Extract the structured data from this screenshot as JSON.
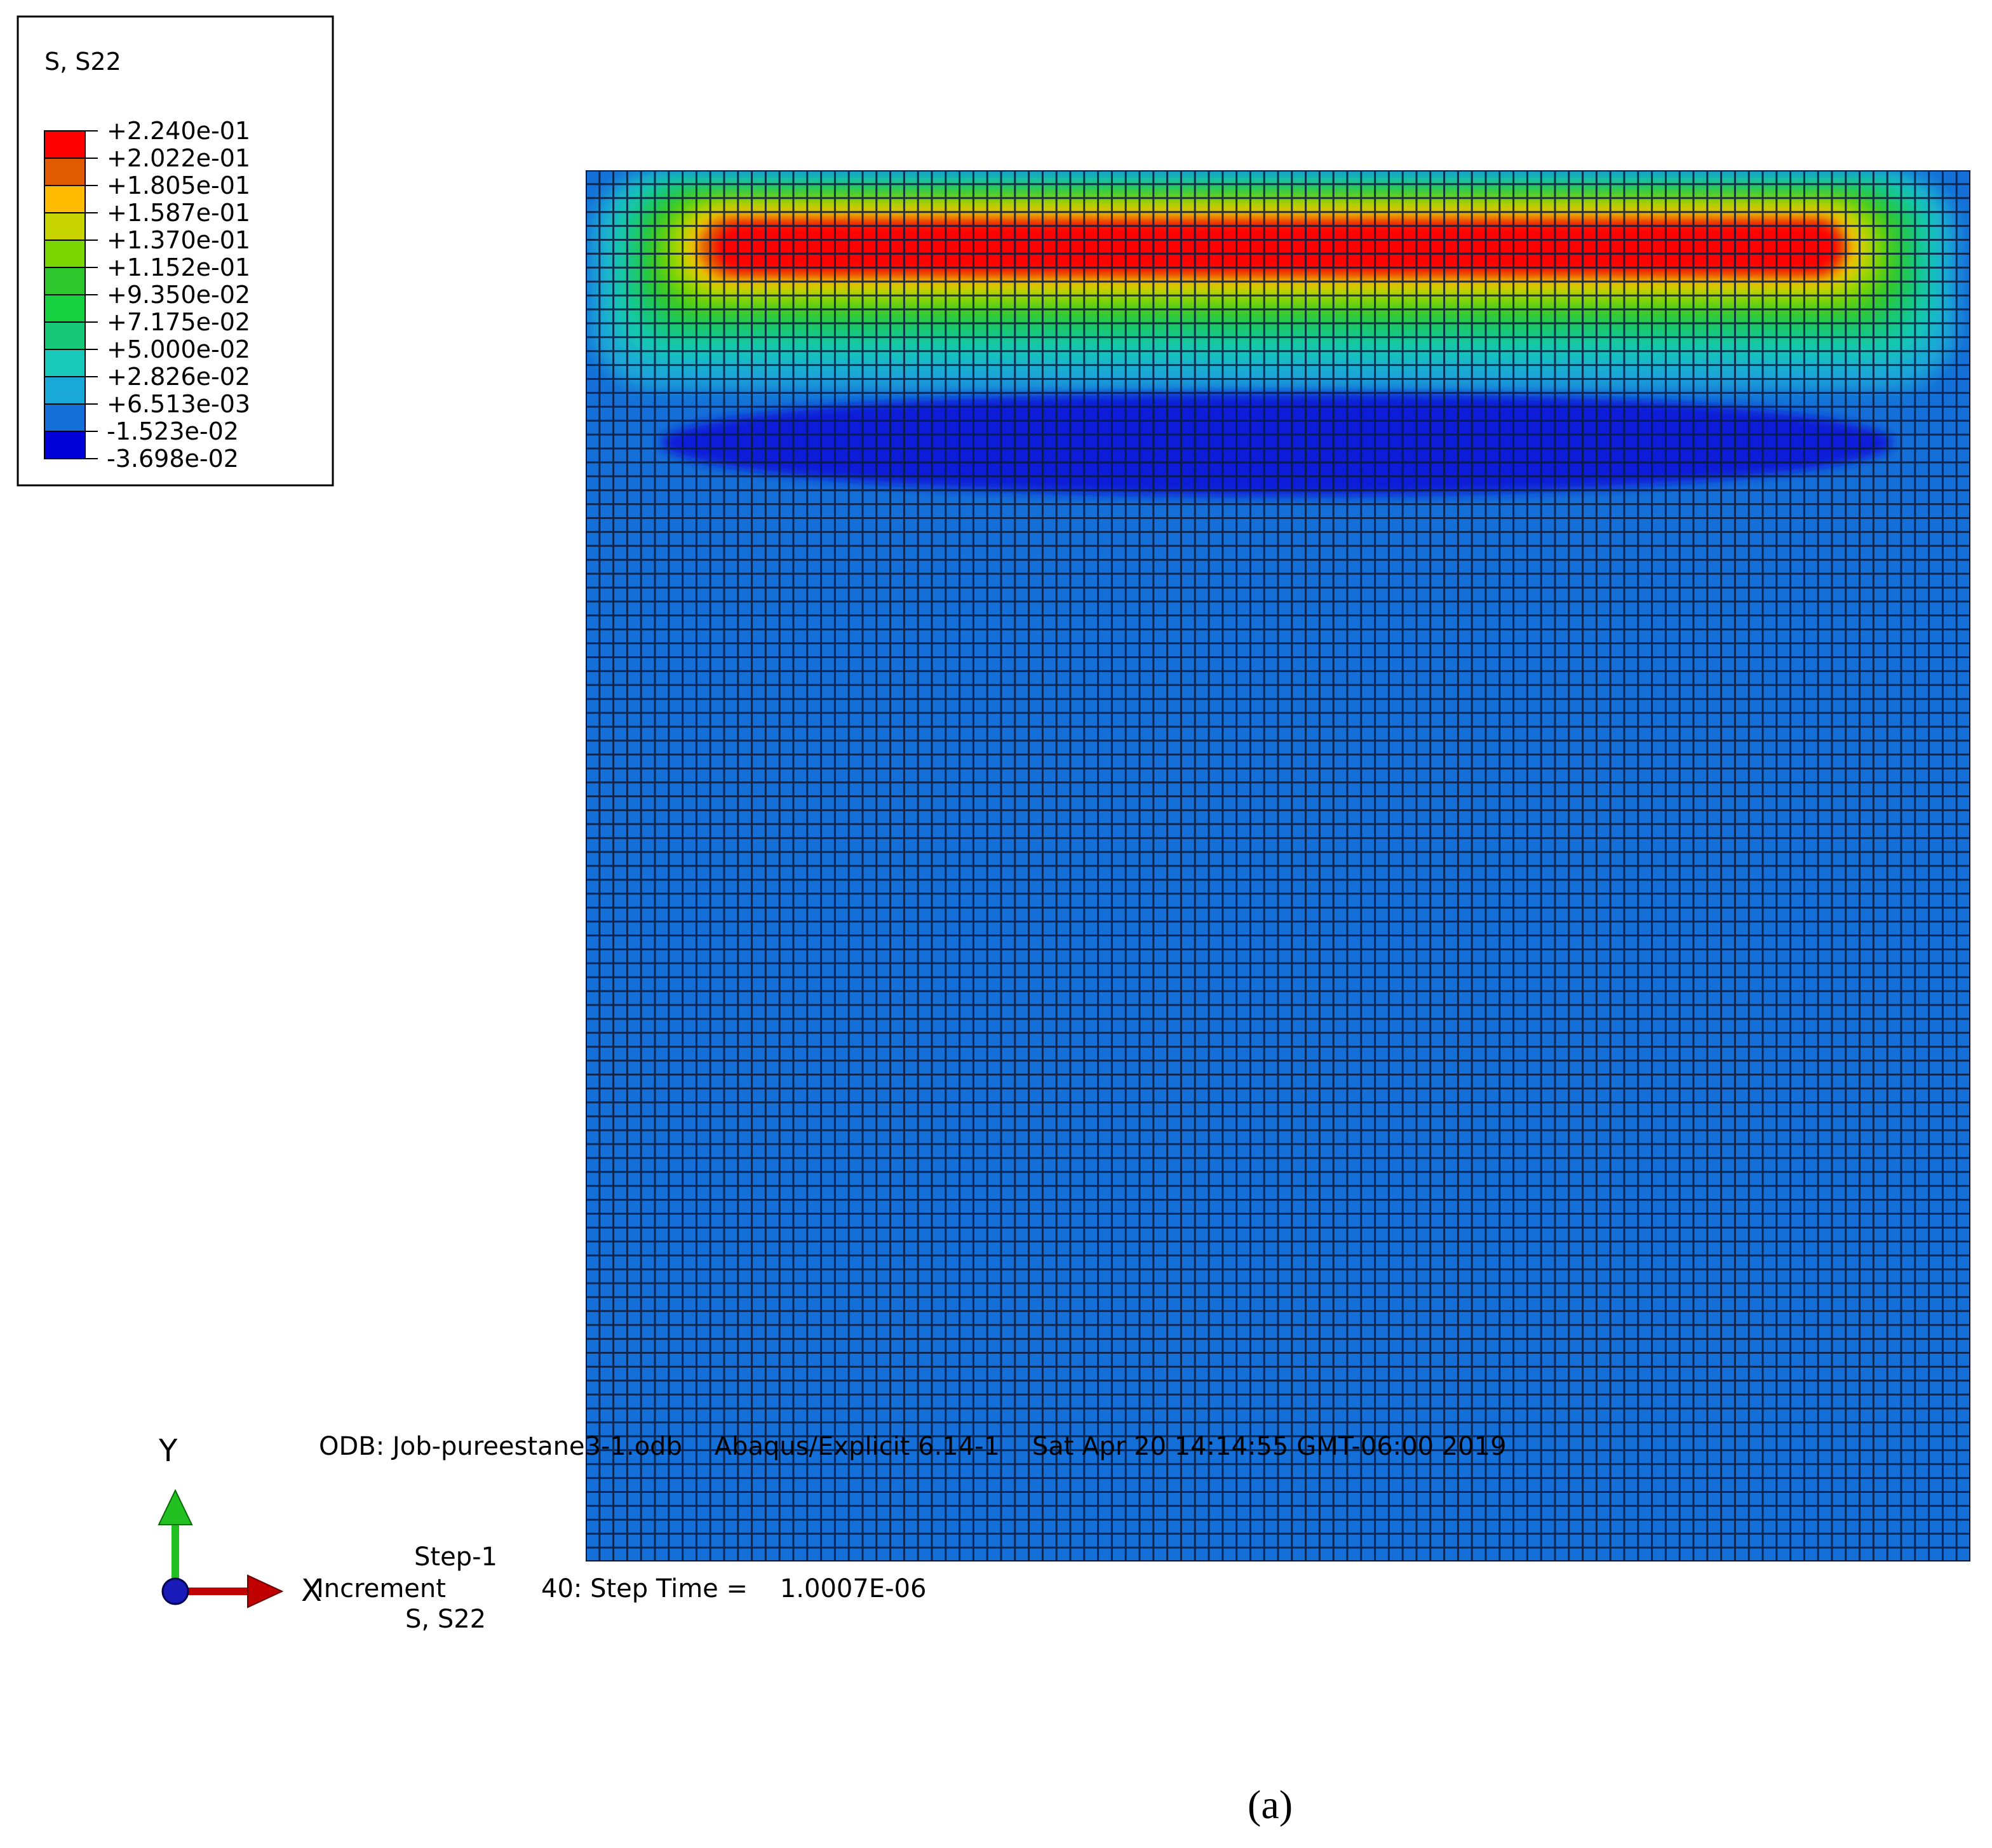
{
  "legend": {
    "title": "S, S22",
    "values": [
      "+2.240e-01",
      "+2.022e-01",
      "+1.805e-01",
      "+1.587e-01",
      "+1.370e-01",
      "+1.152e-01",
      "+9.350e-02",
      "+7.175e-02",
      "+5.000e-02",
      "+2.826e-02",
      "+6.513e-03",
      "-1.523e-02",
      "-3.698e-02"
    ],
    "colors": [
      "#ff0000",
      "#e05a00",
      "#ffbb00",
      "#c8d400",
      "#7bd600",
      "#2ec82e",
      "#16d140",
      "#16c878",
      "#18c8b8",
      "#1aa8d8",
      "#1470d8",
      "#0000d8"
    ]
  },
  "plot": {
    "background_color": "#1470d8",
    "grid_color": "#0a1a3c",
    "grid_cols": 100,
    "grid_rows": 100
  },
  "triad": {
    "y_label": "Y",
    "x_label": "X",
    "y_color": "#22c020",
    "x_color": "#c00000",
    "z_color": "#1a1ab8"
  },
  "info": {
    "odb_line": "ODB: Job-pureestane3-1.odb    Abaqus/Explicit 6.14-1    Sat Apr 20 14:14:55 GMT-06:00 2019",
    "step_line": "Step-1",
    "increment_label": "Increment",
    "increment_value": "40: Step Time =    1.0007E-06",
    "var_line": "S, S22"
  },
  "caption": "(a)"
}
